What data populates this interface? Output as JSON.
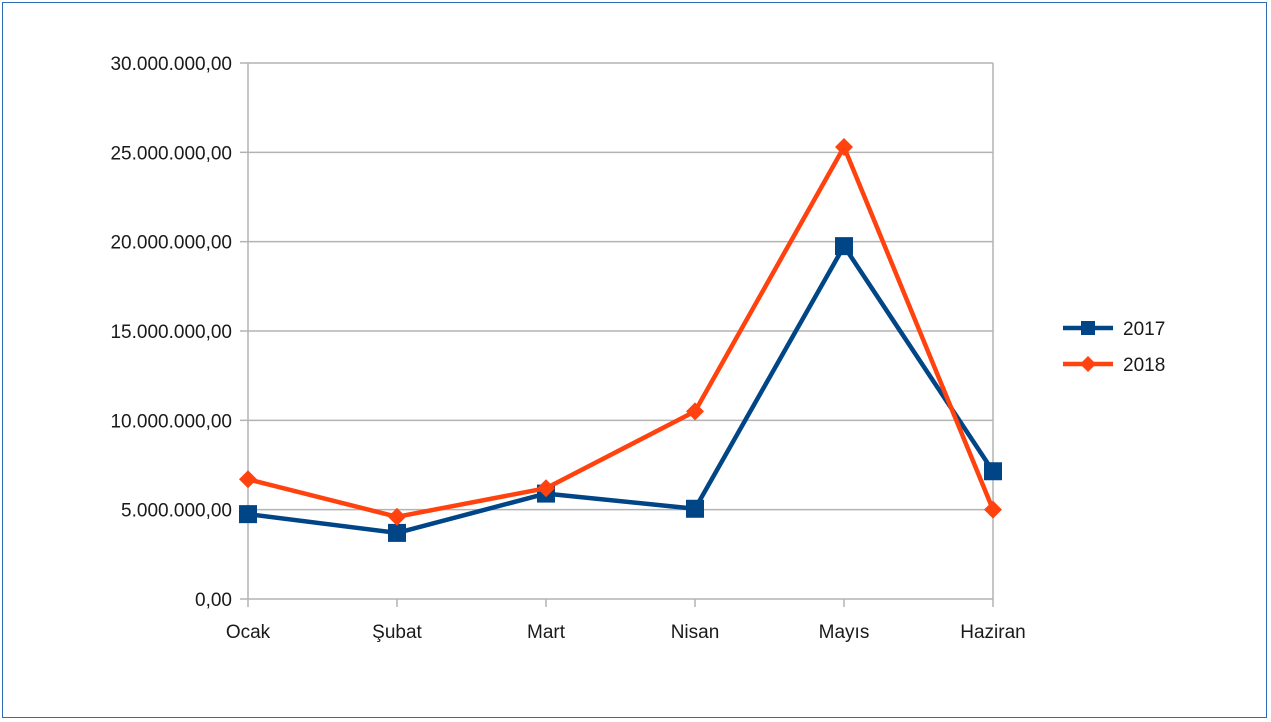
{
  "chart_data": {
    "type": "line",
    "title": "",
    "xlabel": "",
    "ylabel": "",
    "categories": [
      "Ocak",
      "Şubat",
      "Mart",
      "Nisan",
      "Mayıs",
      "Haziran"
    ],
    "ylim": [
      0,
      30000000
    ],
    "yticks": [
      0,
      5000000,
      10000000,
      15000000,
      20000000,
      25000000,
      30000000
    ],
    "ytick_labels": [
      "0,00",
      "5.000.000,00",
      "10.000.000,00",
      "15.000.000,00",
      "20.000.000,00",
      "25.000.000,00",
      "30.000.000,00"
    ],
    "grid": true,
    "legend_position": "right",
    "series": [
      {
        "name": "2017",
        "color": "#004586",
        "marker": "square",
        "values": [
          4750000,
          3700000,
          5900000,
          5050000,
          19750000,
          7150000
        ]
      },
      {
        "name": "2018",
        "color": "#ff420e",
        "marker": "diamond",
        "values": [
          6700000,
          4600000,
          6200000,
          10500000,
          25300000,
          5000000
        ]
      }
    ]
  }
}
